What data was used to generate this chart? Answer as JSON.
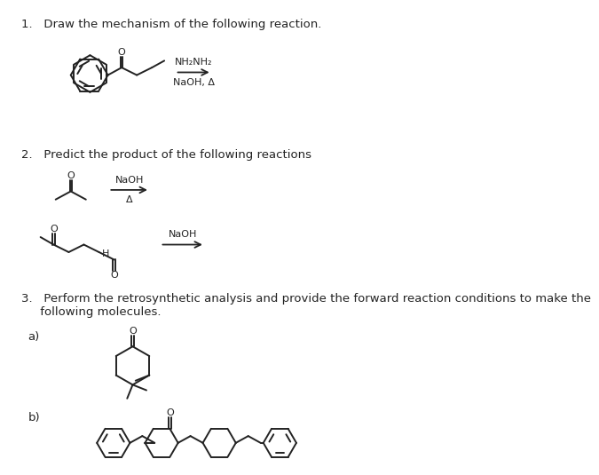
{
  "background_color": "#ffffff",
  "text_color": "#222222",
  "q1_label": "1.   Draw the mechanism of the following reaction.",
  "q2_label": "2.   Predict the product of the following reactions",
  "q3_label": "3.   Perform the retrosynthetic analysis and provide the forward reaction conditions to make the\n     following molecules.",
  "q3a_label": "a)",
  "q3b_label": "b)",
  "nh2nh2": "NH₂NH₂",
  "naoh_delta": "NaOH, Δ",
  "naoh": "NaOH",
  "delta": "Δ",
  "h_label": "H"
}
